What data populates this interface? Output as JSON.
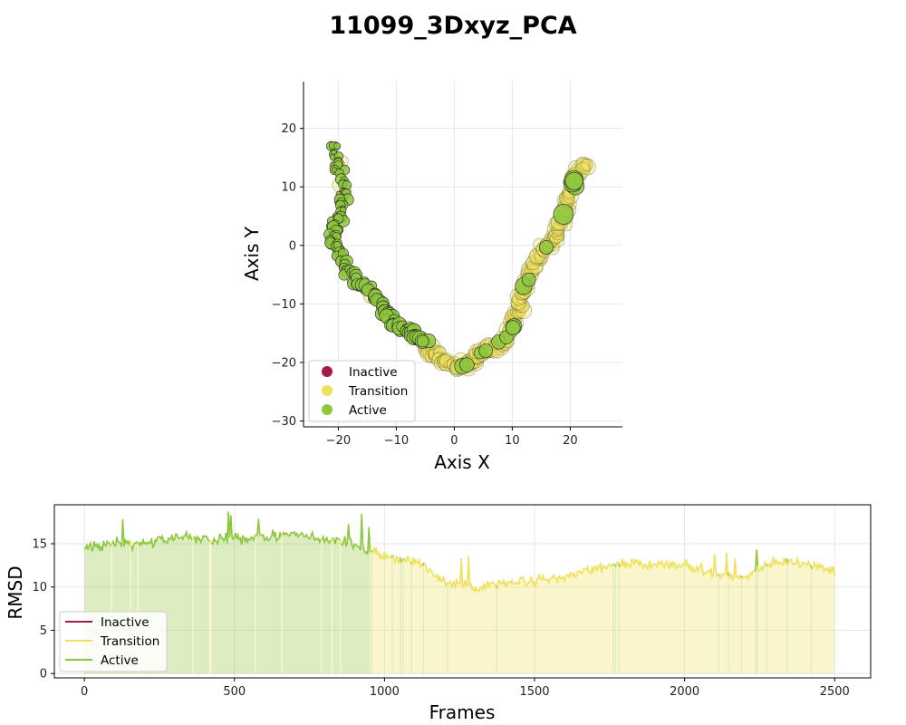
{
  "chart_data": [
    {
      "type": "scatter",
      "title": "11099_3Dxyz_PCA",
      "xlabel": "Axis X",
      "ylabel": "Axis Y",
      "xlim": [
        -26,
        29
      ],
      "ylim": [
        -31,
        28
      ],
      "xticks": [
        -20,
        -10,
        0,
        10,
        20
      ],
      "yticks": [
        -30,
        -20,
        -10,
        0,
        10,
        20
      ],
      "grid": true,
      "legend_position": "bottom-left",
      "legend": [
        {
          "name": "Inactive",
          "color": "#a51a49"
        },
        {
          "name": "Transition",
          "color": "#f0e15c"
        },
        {
          "name": "Active",
          "color": "#8ec73d"
        }
      ],
      "path": [
        [
          -21,
          17
        ],
        [
          -20,
          13
        ],
        [
          -19,
          8
        ],
        [
          -20,
          4
        ],
        [
          -21,
          1
        ],
        [
          -19,
          -3
        ],
        [
          -17,
          -6
        ],
        [
          -14,
          -8
        ],
        [
          -12,
          -11
        ],
        [
          -10,
          -14
        ],
        [
          -7,
          -15
        ],
        [
          -5,
          -17
        ],
        [
          -3,
          -19
        ],
        [
          0,
          -21
        ],
        [
          3,
          -20
        ],
        [
          5,
          -18
        ],
        [
          8,
          -17
        ],
        [
          10,
          -14
        ],
        [
          11,
          -11
        ],
        [
          12,
          -7
        ],
        [
          14,
          -3
        ],
        [
          16,
          0
        ],
        [
          18,
          2
        ],
        [
          19,
          6
        ],
        [
          20,
          9
        ],
        [
          21,
          12
        ],
        [
          23,
          14
        ]
      ],
      "active_until_index": 11
    },
    {
      "type": "line",
      "xlabel": "Frames",
      "ylabel": "RMSD",
      "xlim": [
        -100,
        2620
      ],
      "ylim": [
        -0.5,
        19.5
      ],
      "xticks": [
        0,
        500,
        1000,
        1500,
        2000,
        2500
      ],
      "yticks": [
        0,
        5,
        10,
        15
      ],
      "grid": true,
      "legend_position": "bottom-left",
      "frames": 2500,
      "active_until_frame": 950,
      "levels": [
        [
          0,
          14.5
        ],
        [
          100,
          15
        ],
        [
          200,
          15
        ],
        [
          300,
          15.8
        ],
        [
          400,
          15.6
        ],
        [
          500,
          15.5
        ],
        [
          600,
          16
        ],
        [
          700,
          16
        ],
        [
          800,
          15.5
        ],
        [
          900,
          15
        ],
        [
          950,
          14.3
        ],
        [
          1000,
          13.5
        ],
        [
          1100,
          13
        ],
        [
          1150,
          12
        ],
        [
          1200,
          10.5
        ],
        [
          1300,
          10
        ],
        [
          1400,
          10.5
        ],
        [
          1500,
          10.6
        ],
        [
          1600,
          11
        ],
        [
          1700,
          12.2
        ],
        [
          1800,
          12.8
        ],
        [
          1900,
          12.5
        ],
        [
          2000,
          12.6
        ],
        [
          2100,
          11.5
        ],
        [
          2200,
          11
        ],
        [
          2300,
          13
        ],
        [
          2400,
          12.8
        ],
        [
          2500,
          11.8
        ]
      ],
      "series": [
        {
          "name": "Inactive",
          "color": "#a51a49"
        },
        {
          "name": "Transition",
          "color": "#f0e15c"
        },
        {
          "name": "Active",
          "color": "#8ec73d"
        }
      ]
    }
  ]
}
